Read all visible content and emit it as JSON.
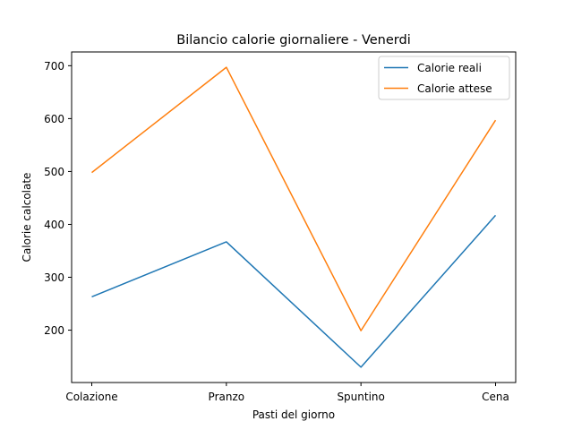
{
  "chart_data": {
    "type": "line",
    "title": "Bilancio calorie giornaliere - Venerdi",
    "xlabel": "Pasti del giorno",
    "ylabel": "Calorie calcolate",
    "categories": [
      "Colazione",
      "Pranzo",
      "Spuntino",
      "Cena"
    ],
    "series": [
      {
        "name": "Calorie reali",
        "color": "#1f77b4",
        "values": [
          263,
          367,
          130,
          417
        ]
      },
      {
        "name": "Calorie attese",
        "color": "#ff7f0e",
        "values": [
          498,
          697,
          199,
          597
        ]
      }
    ],
    "ylim": [
      101,
      726
    ],
    "yticks": [
      200,
      300,
      400,
      500,
      600,
      700
    ],
    "grid": false,
    "legend_position": "top-right"
  }
}
